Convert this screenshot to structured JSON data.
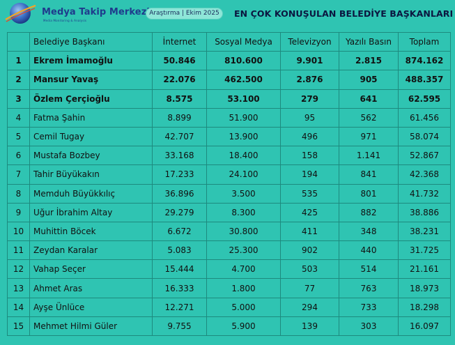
{
  "header": {
    "brand": "Medya Takip Merkezi",
    "brand_sub": "Media Monitoring & Analysis",
    "badge": "Araştırma | Ekim 2025",
    "title": "EN ÇOK KONUŞULAN BELEDİYE BAŞKANLARI"
  },
  "table": {
    "columns": [
      "",
      "Belediye Başkanı",
      "İnternet",
      "Sosyal Medya",
      "Televizyon",
      "Yazılı Basın",
      "Toplam"
    ],
    "rows": [
      {
        "rank": "1",
        "name": "Ekrem İmamoğlu",
        "internet": "50.846",
        "sosyal": "810.600",
        "tv": "9.901",
        "yazili": "2.815",
        "toplam": "874.162"
      },
      {
        "rank": "2",
        "name": "Mansur Yavaş",
        "internet": "22.076",
        "sosyal": "462.500",
        "tv": "2.876",
        "yazili": "905",
        "toplam": "488.357"
      },
      {
        "rank": "3",
        "name": "Özlem Çerçioğlu",
        "internet": "8.575",
        "sosyal": "53.100",
        "tv": "279",
        "yazili": "641",
        "toplam": "62.595"
      },
      {
        "rank": "4",
        "name": "Fatma Şahin",
        "internet": "8.899",
        "sosyal": "51.900",
        "tv": "95",
        "yazili": "562",
        "toplam": "61.456"
      },
      {
        "rank": "5",
        "name": "Cemil Tugay",
        "internet": "42.707",
        "sosyal": "13.900",
        "tv": "496",
        "yazili": "971",
        "toplam": "58.074"
      },
      {
        "rank": "6",
        "name": "Mustafa Bozbey",
        "internet": "33.168",
        "sosyal": "18.400",
        "tv": "158",
        "yazili": "1.141",
        "toplam": "52.867"
      },
      {
        "rank": "7",
        "name": "Tahir Büyükakın",
        "internet": "17.233",
        "sosyal": "24.100",
        "tv": "194",
        "yazili": "841",
        "toplam": "42.368"
      },
      {
        "rank": "8",
        "name": "Memduh Büyükkılıç",
        "internet": "36.896",
        "sosyal": "3.500",
        "tv": "535",
        "yazili": "801",
        "toplam": "41.732"
      },
      {
        "rank": "9",
        "name": "Uğur İbrahim Altay",
        "internet": "29.279",
        "sosyal": "8.300",
        "tv": "425",
        "yazili": "882",
        "toplam": "38.886"
      },
      {
        "rank": "10",
        "name": "Muhittin Böcek",
        "internet": "6.672",
        "sosyal": "30.800",
        "tv": "411",
        "yazili": "348",
        "toplam": "38.231"
      },
      {
        "rank": "11",
        "name": "Zeydan Karalar",
        "internet": "5.083",
        "sosyal": "25.300",
        "tv": "902",
        "yazili": "440",
        "toplam": "31.725"
      },
      {
        "rank": "12",
        "name": "Vahap Seçer",
        "internet": "15.444",
        "sosyal": "4.700",
        "tv": "503",
        "yazili": "514",
        "toplam": "21.161"
      },
      {
        "rank": "13",
        "name": "Ahmet Aras",
        "internet": "16.333",
        "sosyal": "1.800",
        "tv": "77",
        "yazili": "763",
        "toplam": "18.973"
      },
      {
        "rank": "14",
        "name": "Ayşe Ünlüce",
        "internet": "12.271",
        "sosyal": "5.000",
        "tv": "294",
        "yazili": "733",
        "toplam": "18.298"
      },
      {
        "rank": "15",
        "name": "Mehmet Hilmi Güler",
        "internet": "9.755",
        "sosyal": "5.900",
        "tv": "139",
        "yazili": "303",
        "toplam": "16.097"
      }
    ]
  },
  "colors": {
    "background": "#2fc4b2",
    "brand": "#1f3b8c",
    "border": "#1d8a7e",
    "headline": "#0b1740"
  },
  "icons": {
    "logo": "globe-swoosh-logo-icon",
    "watermark": "globe-watermark-icon"
  }
}
